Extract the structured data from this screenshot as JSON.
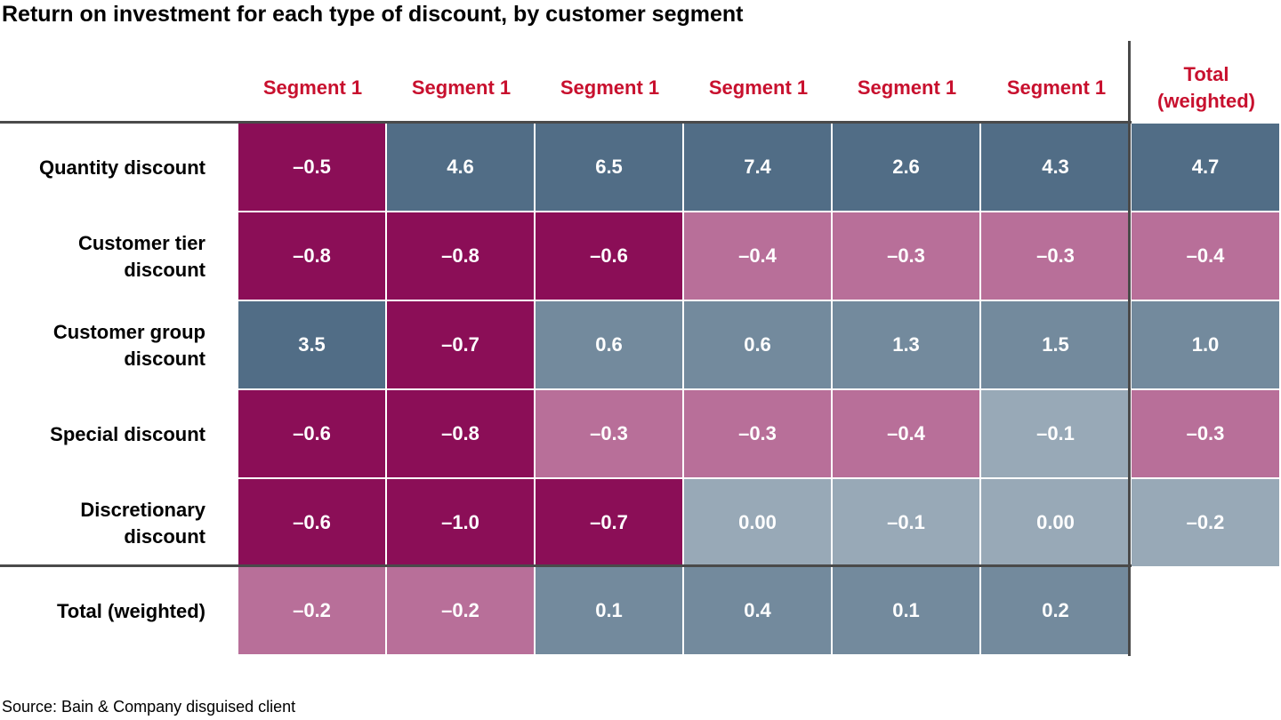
{
  "title": "Return on investment for each type of discount, by customer segment",
  "source": "Source: Bain & Company disguised client",
  "colors": {
    "dark_negative": "#8b0e57",
    "light_negative": "#b86f99",
    "dark_positive": "#516d86",
    "mid_positive": "#738a9d",
    "light_positive": "#98a9b7",
    "header_text": "#c8102e"
  },
  "chart_data": {
    "type": "table",
    "columns": [
      "Segment 1",
      "Segment 1",
      "Segment 1",
      "Segment 1",
      "Segment 1",
      "Segment 1",
      "Total\n(weighted)"
    ],
    "rows": [
      {
        "label": "Quantity discount",
        "values": [
          "–0.5",
          "4.6",
          "6.5",
          "7.4",
          "2.6",
          "4.3",
          "4.7"
        ],
        "shades": [
          "dark_negative",
          "dark_positive",
          "dark_positive",
          "dark_positive",
          "dark_positive",
          "dark_positive",
          "dark_positive"
        ]
      },
      {
        "label": "Customer tier\ndiscount",
        "values": [
          "–0.8",
          "–0.8",
          "–0.6",
          "–0.4",
          "–0.3",
          "–0.3",
          "–0.4"
        ],
        "shades": [
          "dark_negative",
          "dark_negative",
          "dark_negative",
          "light_negative",
          "light_negative",
          "light_negative",
          "light_negative"
        ]
      },
      {
        "label": "Customer group\ndiscount",
        "values": [
          "3.5",
          "–0.7",
          "0.6",
          "0.6",
          "1.3",
          "1.5",
          "1.0"
        ],
        "shades": [
          "dark_positive",
          "dark_negative",
          "mid_positive",
          "mid_positive",
          "mid_positive",
          "mid_positive",
          "mid_positive"
        ]
      },
      {
        "label": "Special discount",
        "values": [
          "–0.6",
          "–0.8",
          "–0.3",
          "–0.3",
          "–0.4",
          "–0.1",
          "–0.3"
        ],
        "shades": [
          "dark_negative",
          "dark_negative",
          "light_negative",
          "light_negative",
          "light_negative",
          "light_positive",
          "light_negative"
        ]
      },
      {
        "label": "Discretionary\ndiscount",
        "values": [
          "–0.6",
          "–1.0",
          "–0.7",
          "0.00",
          "–0.1",
          "0.00",
          "–0.2"
        ],
        "shades": [
          "dark_negative",
          "dark_negative",
          "dark_negative",
          "light_positive",
          "light_positive",
          "light_positive",
          "light_positive"
        ]
      },
      {
        "label": "Total (weighted)",
        "values": [
          "–0.2",
          "–0.2",
          "0.1",
          "0.4",
          "0.1",
          "0.2",
          ""
        ],
        "shades": [
          "light_negative",
          "light_negative",
          "mid_positive",
          "mid_positive",
          "mid_positive",
          "mid_positive",
          "none"
        ]
      }
    ]
  }
}
